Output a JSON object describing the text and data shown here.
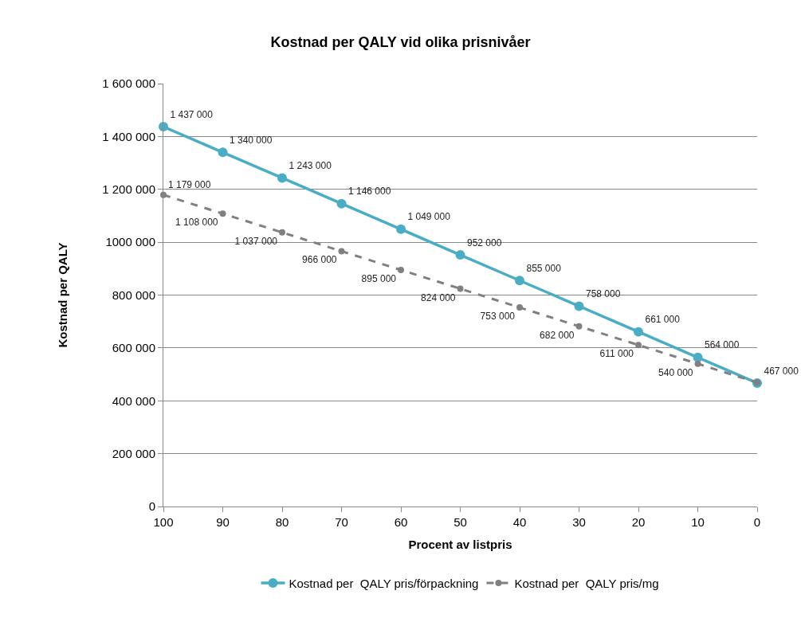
{
  "chart_data": {
    "type": "line",
    "title": "Kostnad per QALY vid olika prisnivåer",
    "xlabel": "Procent av listpris",
    "ylabel": "Kostnad per QALY",
    "categories": [
      "100",
      "90",
      "80",
      "70",
      "60",
      "50",
      "40",
      "30",
      "20",
      "10",
      "0"
    ],
    "series": [
      {
        "name": "Kostnad per  QALY pris/förpackning",
        "color": "#4bacc6",
        "line_style": "solid",
        "values": [
          1437000,
          1340000,
          1243000,
          1146000,
          1049000,
          952000,
          855000,
          758000,
          661000,
          564000,
          467000
        ],
        "value_labels": [
          "1 437 000",
          "1 340 000",
          "1 243 000",
          "1 146 000",
          "1 049 000",
          "952 000",
          "855 000",
          "758 000",
          "661 000",
          "564 000",
          "467 000"
        ]
      },
      {
        "name": "Kostnad per  QALY pris/mg",
        "color": "#808080",
        "line_style": "dashed",
        "values": [
          1179000,
          1108000,
          1037000,
          966000,
          895000,
          824000,
          753000,
          682000,
          611000,
          540000,
          469000
        ],
        "value_labels": [
          "1 179 000",
          "1 108 000",
          "1 037 000",
          "966 000",
          "895 000",
          "824 000",
          "753 000",
          "682 000",
          "611 000",
          "540 000",
          null
        ]
      }
    ],
    "ylim": [
      0,
      1600000
    ],
    "yticks": [
      {
        "value": 0,
        "label": "0"
      },
      {
        "value": 200000,
        "label": "200 000"
      },
      {
        "value": 400000,
        "label": "400 000"
      },
      {
        "value": 600000,
        "label": "600 000"
      },
      {
        "value": 800000,
        "label": "800 000"
      },
      {
        "value": 1000000,
        "label": "1000 000"
      },
      {
        "value": 1200000,
        "label": "1 200 000"
      },
      {
        "value": 1400000,
        "label": "1 400 000"
      },
      {
        "value": 1600000,
        "label": "1 600 000"
      }
    ],
    "grid": "y",
    "legend": "bottom",
    "marker": "circle"
  }
}
